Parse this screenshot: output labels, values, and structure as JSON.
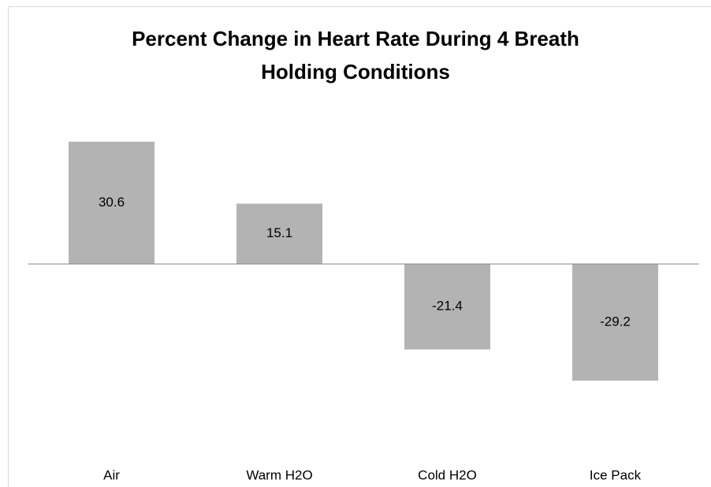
{
  "chart_data": {
    "type": "bar",
    "title": "Percent Change in Heart Rate During 4 Breath Holding Conditions",
    "categories": [
      "Air",
      "Warm H2O",
      "Cold H2O",
      "Ice Pack"
    ],
    "values": [
      30.6,
      15.1,
      -21.4,
      -29.2
    ],
    "color": "#b3b3b3"
  }
}
